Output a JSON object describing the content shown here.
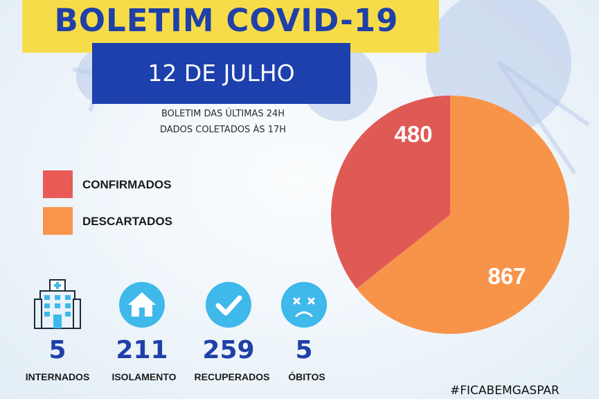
{
  "header": {
    "title": "BOLETIM COVID-19",
    "date": "12 DE JULHO",
    "subtitle_line1": "BOLETIM DAS ÚLTIMAS 24H",
    "subtitle_line2": "DADOS COLETADOS ÀS  17H"
  },
  "legend": [
    {
      "label": "CONFIRMADOS",
      "color": "#e85b56"
    },
    {
      "label": "DESCARTADOS",
      "color": "#f8954a"
    }
  ],
  "chart_data": {
    "type": "pie",
    "labels": [
      "CONFIRMADOS",
      "DESCARTADOS"
    ],
    "values": [
      480,
      867
    ],
    "colors": [
      "#e05a55",
      "#f8944a"
    ],
    "legend_position": "left"
  },
  "stats": [
    {
      "value": "5",
      "label": "INTERNADOS",
      "icon": "hospital-icon"
    },
    {
      "value": "211",
      "label": "ISOLAMENTO",
      "icon": "house-icon"
    },
    {
      "value": "259",
      "label": "RECUPERADOS",
      "icon": "check-icon"
    },
    {
      "value": "5",
      "label": "ÓBITOS",
      "icon": "sad-face-icon"
    }
  ],
  "footer": {
    "hashtag": "#FICABEMGASPAR"
  },
  "colors": {
    "title_band": "#f7dc4a",
    "brand_blue": "#1f40a8",
    "icon_circle": "#3fb8ea"
  }
}
